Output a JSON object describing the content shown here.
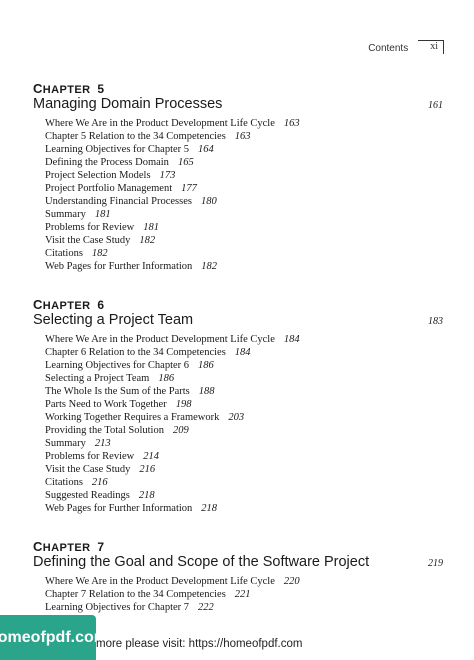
{
  "header": {
    "section": "Contents",
    "page_number": "xi"
  },
  "chapters": [
    {
      "label_cap": "C",
      "label_rest": "HAPTER",
      "number": "5",
      "title": "Managing Domain Processes",
      "page": "161",
      "entries": [
        {
          "text": "Where We Are in the Product Development Life Cycle",
          "page": "163"
        },
        {
          "text": "Chapter 5 Relation to the 34 Competencies",
          "page": "163"
        },
        {
          "text": "Learning Objectives for Chapter 5",
          "page": "164"
        },
        {
          "text": "Defining the Process Domain",
          "page": "165"
        },
        {
          "text": "Project Selection Models",
          "page": "173"
        },
        {
          "text": "Project Portfolio Management",
          "page": "177"
        },
        {
          "text": "Understanding Financial Processes",
          "page": "180"
        },
        {
          "text": "Summary",
          "page": "181"
        },
        {
          "text": "Problems for Review",
          "page": "181"
        },
        {
          "text": "Visit the Case Study",
          "page": "182"
        },
        {
          "text": "Citations",
          "page": "182"
        },
        {
          "text": "Web Pages for Further Information",
          "page": "182"
        }
      ]
    },
    {
      "label_cap": "C",
      "label_rest": "HAPTER",
      "number": "6",
      "title": "Selecting a Project Team",
      "page": "183",
      "entries": [
        {
          "text": "Where We Are in the Product Development Life Cycle",
          "page": "184"
        },
        {
          "text": "Chapter 6 Relation to the 34 Competencies",
          "page": "184"
        },
        {
          "text": "Learning Objectives for Chapter 6",
          "page": "186"
        },
        {
          "text": "Selecting a Project Team",
          "page": "186"
        },
        {
          "text": "The Whole Is the Sum of the Parts",
          "page": "188"
        },
        {
          "text": "Parts Need to Work Together",
          "page": "198"
        },
        {
          "text": "Working Together Requires a Framework",
          "page": "203"
        },
        {
          "text": "Providing the Total Solution",
          "page": "209"
        },
        {
          "text": "Summary",
          "page": "213"
        },
        {
          "text": "Problems for Review",
          "page": "214"
        },
        {
          "text": "Visit the Case Study",
          "page": "216"
        },
        {
          "text": "Citations",
          "page": "216"
        },
        {
          "text": "Suggested Readings",
          "page": "218"
        },
        {
          "text": "Web Pages for Further Information",
          "page": "218"
        }
      ]
    },
    {
      "label_cap": "C",
      "label_rest": "HAPTER",
      "number": "7",
      "title": "Defining the Goal and Scope of the Software Project",
      "page": "219",
      "entries": [
        {
          "text": "Where We Are in the Product Development Life Cycle",
          "page": "220"
        },
        {
          "text": "Chapter 7 Relation to the 34 Competencies",
          "page": "221"
        },
        {
          "text": "Learning Objectives for Chapter 7",
          "page": "222"
        }
      ]
    }
  ],
  "ad": {
    "logo_text": "homeofpdf.com",
    "text": "more please visit: https://homeofpdf.com"
  }
}
